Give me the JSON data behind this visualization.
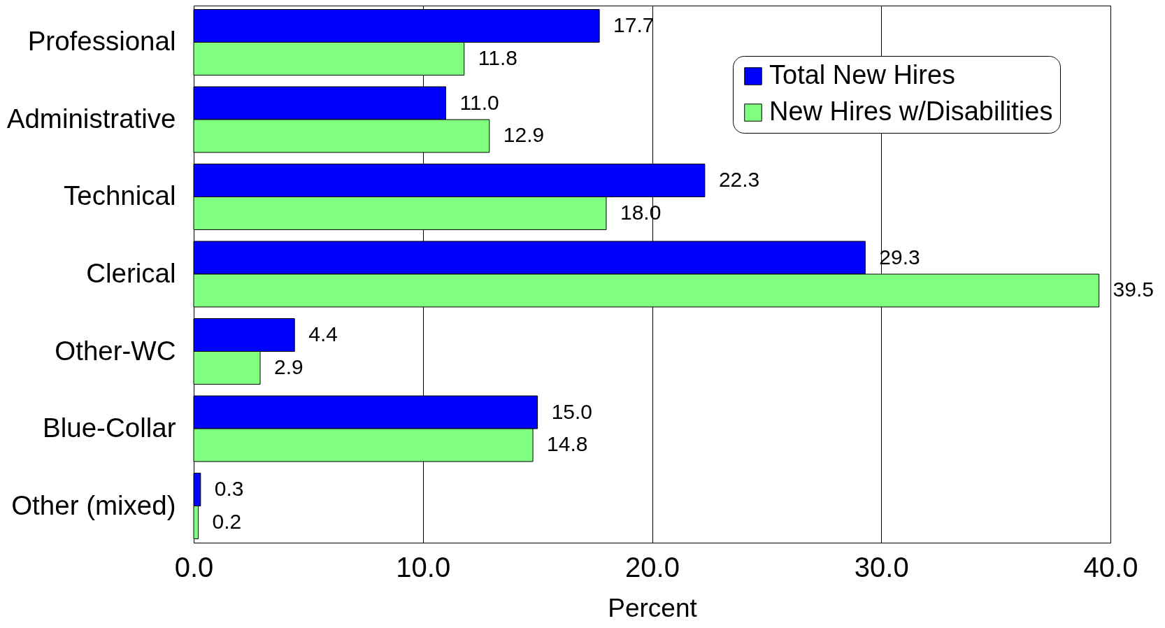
{
  "chart_data": {
    "type": "bar",
    "orientation": "horizontal",
    "categories": [
      "Professional",
      "Administrative",
      "Technical",
      "Clerical",
      "Other-WC",
      "Blue-Collar",
      "Other (mixed)"
    ],
    "series": [
      {
        "name": "Total New Hires",
        "color": "#0000ff",
        "values": [
          17.7,
          11.0,
          22.3,
          29.3,
          4.4,
          15.0,
          0.3
        ],
        "value_labels": [
          "17.7",
          "11.0",
          "22.3",
          "29.3",
          "4.4",
          "15.0",
          "0.3"
        ]
      },
      {
        "name": "New Hires w/Disabilities",
        "color": "#80ff80",
        "values": [
          11.8,
          12.9,
          18.0,
          39.5,
          2.9,
          14.8,
          0.2
        ],
        "value_labels": [
          "11.8",
          "12.9",
          "18.0",
          "39.5",
          "2.9",
          "14.8",
          "0.2"
        ]
      }
    ],
    "xlabel": "Percent",
    "xlim": [
      0,
      40
    ],
    "xticks": [
      {
        "value": 0,
        "label": "0.0"
      },
      {
        "value": 10,
        "label": "10.0"
      },
      {
        "value": 20,
        "label": "20.0"
      },
      {
        "value": 30,
        "label": "30.0"
      },
      {
        "value": 40,
        "label": "40.0"
      }
    ],
    "grid": "x",
    "legend": "top right"
  }
}
